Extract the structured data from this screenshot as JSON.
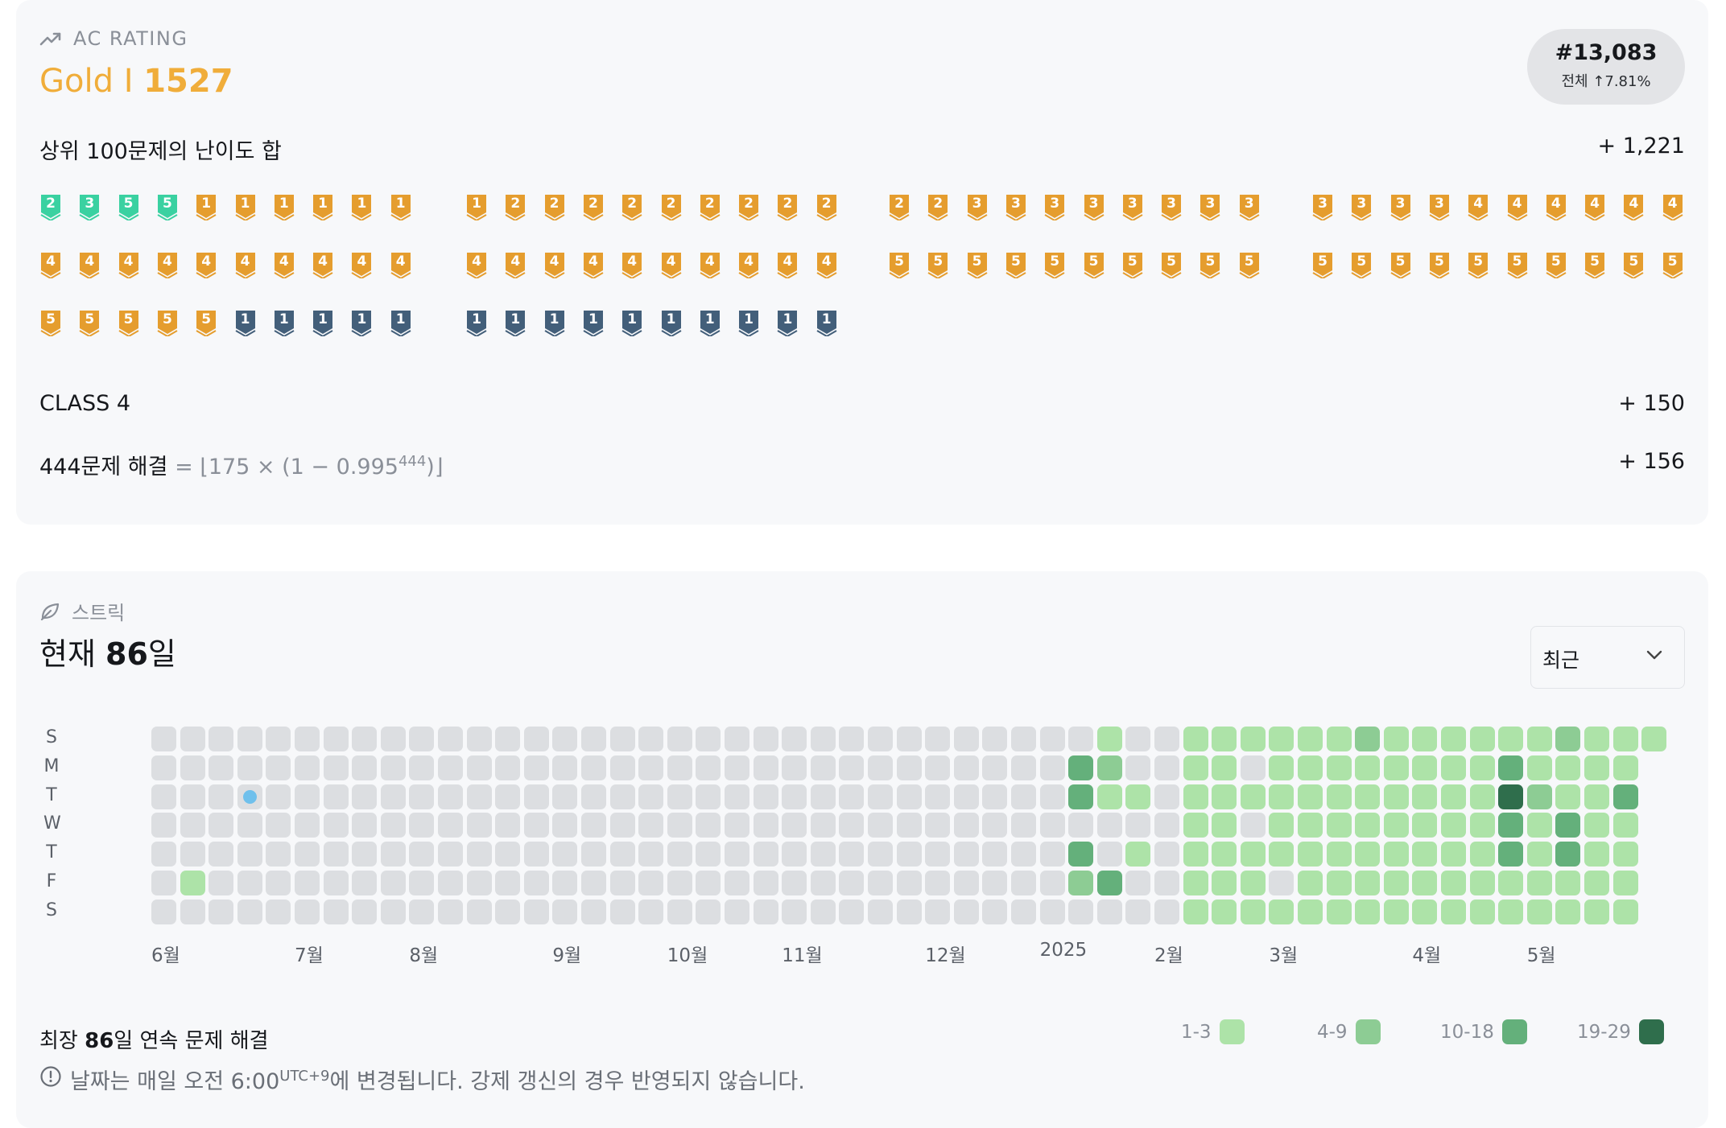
{
  "rating": {
    "section_label": "AC RATING",
    "tier_name": "Gold I",
    "rating_value": "1527",
    "rank": "#13,083",
    "rank_sub": "전체 ↑7.81%",
    "top100_label": "상위 100문제의 난이도 합",
    "top100_value": "+ 1,221",
    "badge_groups": [
      [
        [
          "P",
          "2"
        ],
        [
          "P",
          "3"
        ],
        [
          "P",
          "5"
        ],
        [
          "P",
          "5"
        ],
        [
          "G",
          "1"
        ],
        [
          "G",
          "1"
        ],
        [
          "G",
          "1"
        ],
        [
          "G",
          "1"
        ],
        [
          "G",
          "1"
        ],
        [
          "G",
          "1"
        ],
        [
          "G",
          "4"
        ],
        [
          "G",
          "4"
        ],
        [
          "G",
          "4"
        ],
        [
          "G",
          "4"
        ],
        [
          "G",
          "4"
        ],
        [
          "G",
          "4"
        ],
        [
          "G",
          "4"
        ],
        [
          "G",
          "4"
        ],
        [
          "G",
          "4"
        ],
        [
          "G",
          "4"
        ],
        [
          "G",
          "5"
        ],
        [
          "G",
          "5"
        ],
        [
          "G",
          "5"
        ],
        [
          "G",
          "5"
        ],
        [
          "G",
          "5"
        ],
        [
          "S",
          "1"
        ],
        [
          "S",
          "1"
        ],
        [
          "S",
          "1"
        ],
        [
          "S",
          "1"
        ],
        [
          "S",
          "1"
        ]
      ],
      [
        [
          "G",
          "1"
        ],
        [
          "G",
          "2"
        ],
        [
          "G",
          "2"
        ],
        [
          "G",
          "2"
        ],
        [
          "G",
          "2"
        ],
        [
          "G",
          "2"
        ],
        [
          "G",
          "2"
        ],
        [
          "G",
          "2"
        ],
        [
          "G",
          "2"
        ],
        [
          "G",
          "2"
        ],
        [
          "G",
          "4"
        ],
        [
          "G",
          "4"
        ],
        [
          "G",
          "4"
        ],
        [
          "G",
          "4"
        ],
        [
          "G",
          "4"
        ],
        [
          "G",
          "4"
        ],
        [
          "G",
          "4"
        ],
        [
          "G",
          "4"
        ],
        [
          "G",
          "4"
        ],
        [
          "G",
          "4"
        ],
        [
          "S",
          "1"
        ],
        [
          "S",
          "1"
        ],
        [
          "S",
          "1"
        ],
        [
          "S",
          "1"
        ],
        [
          "S",
          "1"
        ],
        [
          "S",
          "1"
        ],
        [
          "S",
          "1"
        ],
        [
          "S",
          "1"
        ],
        [
          "S",
          "1"
        ],
        [
          "S",
          "1"
        ]
      ],
      [
        [
          "G",
          "2"
        ],
        [
          "G",
          "2"
        ],
        [
          "G",
          "3"
        ],
        [
          "G",
          "3"
        ],
        [
          "G",
          "3"
        ],
        [
          "G",
          "3"
        ],
        [
          "G",
          "3"
        ],
        [
          "G",
          "3"
        ],
        [
          "G",
          "3"
        ],
        [
          "G",
          "3"
        ],
        [
          "G",
          "5"
        ],
        [
          "G",
          "5"
        ],
        [
          "G",
          "5"
        ],
        [
          "G",
          "5"
        ],
        [
          "G",
          "5"
        ],
        [
          "G",
          "5"
        ],
        [
          "G",
          "5"
        ],
        [
          "G",
          "5"
        ],
        [
          "G",
          "5"
        ],
        [
          "G",
          "5"
        ]
      ],
      [
        [
          "G",
          "3"
        ],
        [
          "G",
          "3"
        ],
        [
          "G",
          "3"
        ],
        [
          "G",
          "3"
        ],
        [
          "G",
          "4"
        ],
        [
          "G",
          "4"
        ],
        [
          "G",
          "4"
        ],
        [
          "G",
          "4"
        ],
        [
          "G",
          "4"
        ],
        [
          "G",
          "4"
        ],
        [
          "G",
          "5"
        ],
        [
          "G",
          "5"
        ],
        [
          "G",
          "5"
        ],
        [
          "G",
          "5"
        ],
        [
          "G",
          "5"
        ],
        [
          "G",
          "5"
        ],
        [
          "G",
          "5"
        ],
        [
          "G",
          "5"
        ],
        [
          "G",
          "5"
        ],
        [
          "G",
          "5"
        ]
      ]
    ],
    "badge_colors": {
      "P": "#3ad1a1",
      "G": "#e59d2e",
      "S": "#435f7a"
    },
    "class_label": "CLASS 4",
    "class_value": "+ 150",
    "solved_label": "444문제 해결",
    "formula_main": "= ⌊175 × (1 − 0.995",
    "formula_exp": "444",
    "formula_end": ")⌋",
    "solved_value": "+ 156"
  },
  "streak": {
    "section_label": "스트릭",
    "current_prefix": "현재 ",
    "current_days": "86",
    "current_suffix": "일",
    "select_value": "최근",
    "day_labels": [
      "S",
      "M",
      "T",
      "W",
      "T",
      "F",
      "S"
    ],
    "month_labels": [
      {
        "text": "6월",
        "week": 0
      },
      {
        "text": "7월",
        "week": 5
      },
      {
        "text": "8월",
        "week": 9
      },
      {
        "text": "9월",
        "week": 14
      },
      {
        "text": "10월",
        "week": 18
      },
      {
        "text": "11월",
        "week": 22
      },
      {
        "text": "12월",
        "week": 27
      },
      {
        "text": "2025",
        "week": 31
      },
      {
        "text": "2월",
        "week": 35
      },
      {
        "text": "3월",
        "week": 39
      },
      {
        "text": "4월",
        "week": 44
      },
      {
        "text": "5월",
        "week": 48
      }
    ],
    "weeks": 53,
    "last_week_days": 1,
    "levels": {
      "32": [
        0,
        3,
        3,
        0,
        3,
        2,
        0
      ],
      "33": [
        1,
        2,
        1,
        0,
        0,
        3,
        0
      ],
      "34": [
        0,
        0,
        1,
        0,
        1,
        0,
        0
      ],
      "35": [
        0,
        0,
        0,
        0,
        0,
        0,
        0
      ],
      "36": [
        1,
        1,
        1,
        1,
        1,
        1,
        1
      ],
      "37": [
        1,
        1,
        1,
        1,
        1,
        1,
        1
      ],
      "38": [
        1,
        0,
        1,
        0,
        1,
        1,
        1
      ],
      "39": [
        1,
        1,
        1,
        1,
        1,
        0,
        1
      ],
      "40": [
        1,
        1,
        1,
        1,
        1,
        1,
        1
      ],
      "41": [
        1,
        1,
        1,
        1,
        1,
        1,
        1
      ],
      "42": [
        2,
        1,
        1,
        1,
        1,
        1,
        1
      ],
      "43": [
        1,
        1,
        1,
        1,
        1,
        1,
        1
      ],
      "44": [
        1,
        1,
        1,
        1,
        1,
        1,
        1
      ],
      "45": [
        1,
        1,
        1,
        1,
        1,
        1,
        1
      ],
      "46": [
        1,
        1,
        1,
        1,
        1,
        1,
        1
      ],
      "47": [
        1,
        3,
        4,
        3,
        3,
        1,
        1
      ],
      "48": [
        1,
        1,
        2,
        1,
        1,
        1,
        1
      ],
      "49": [
        2,
        1,
        1,
        3,
        3,
        1,
        1
      ],
      "50": [
        1,
        1,
        1,
        1,
        1,
        1,
        1
      ],
      "51": [
        1,
        1,
        3,
        1,
        1,
        1,
        1
      ],
      "52": [
        1,
        0,
        0,
        0,
        0,
        0,
        0
      ],
      "1": [
        0,
        0,
        0,
        0,
        0,
        1,
        0
      ]
    },
    "dot_cell": {
      "week": 3,
      "day": 2
    },
    "longest_prefix": "최장 ",
    "longest_days": "86",
    "longest_suffix": "일 연속 문제 해결",
    "legend": [
      {
        "label": "1-3",
        "color": "#ade3a8"
      },
      {
        "label": "4-9",
        "color": "#8dcc94"
      },
      {
        "label": "10-18",
        "color": "#64b07b"
      },
      {
        "label": "19-29",
        "color": "#2f6e4c"
      }
    ],
    "level_colors": [
      "#dcdee1",
      "#ade3a8",
      "#8dcc94",
      "#64b07b",
      "#2f6e4c"
    ],
    "note_main": "날짜는 매일 오전 6:00",
    "note_sup": "UTC+9",
    "note_rest": "에 변경됩니다. 강제 갱신의 경우 반영되지 않습니다."
  }
}
